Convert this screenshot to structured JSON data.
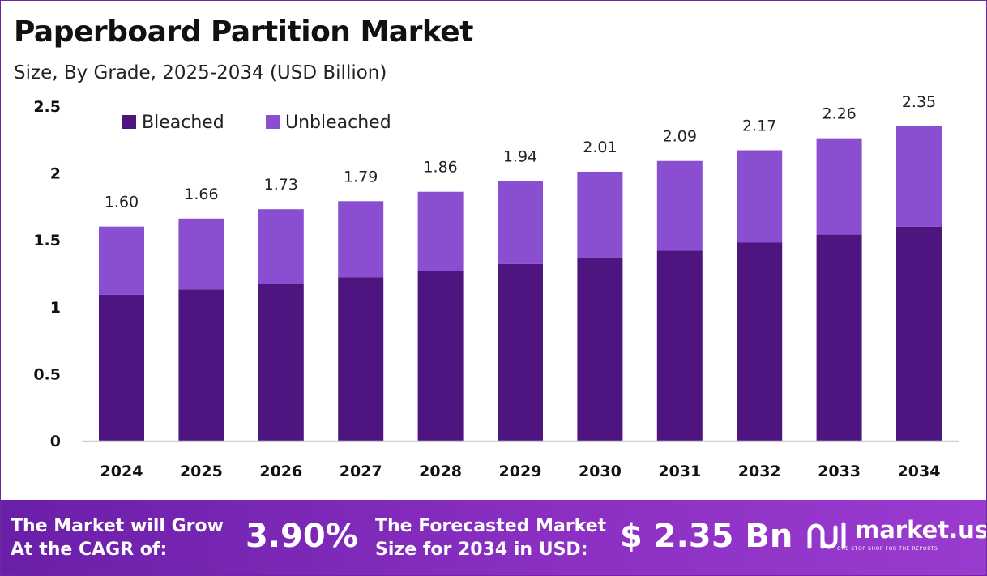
{
  "header": {
    "title": "Paperboard Partition Market",
    "subtitle": "Size, By Grade, 2025-2034 (USD Billion)"
  },
  "chart_data": {
    "type": "bar",
    "stacked": true,
    "categories": [
      "2024",
      "2025",
      "2026",
      "2027",
      "2028",
      "2029",
      "2030",
      "2031",
      "2032",
      "2033",
      "2034"
    ],
    "series": [
      {
        "name": "Bleached",
        "color": "#4e1581",
        "values": [
          1.09,
          1.13,
          1.17,
          1.22,
          1.27,
          1.32,
          1.37,
          1.42,
          1.48,
          1.54,
          1.6
        ]
      },
      {
        "name": "Unbleached",
        "color": "#8a4ed1",
        "values": [
          0.51,
          0.53,
          0.56,
          0.57,
          0.59,
          0.62,
          0.64,
          0.67,
          0.69,
          0.72,
          0.75
        ]
      }
    ],
    "totals": [
      "1.60",
      "1.66",
      "1.73",
      "1.79",
      "1.86",
      "1.94",
      "2.01",
      "2.09",
      "2.17",
      "2.26",
      "2.35"
    ],
    "yticks": [
      "0",
      "0.5",
      "1",
      "1.5",
      "2",
      "2.5"
    ],
    "ylim": [
      0,
      2.5
    ],
    "legend_position": "top-left",
    "grid": false
  },
  "footer": {
    "cagr_label_1": "The Market will Grow",
    "cagr_label_2": "At the CAGR of:",
    "cagr_value": "3.90%",
    "forecast_label_1": "The Forecasted Market",
    "forecast_label_2": "Size for 2034 in USD:",
    "forecast_value": "$ 2.35 Bn",
    "brand_name": "market.us",
    "brand_tagline": "ONE STOP SHOP FOR THE REPORTS"
  }
}
